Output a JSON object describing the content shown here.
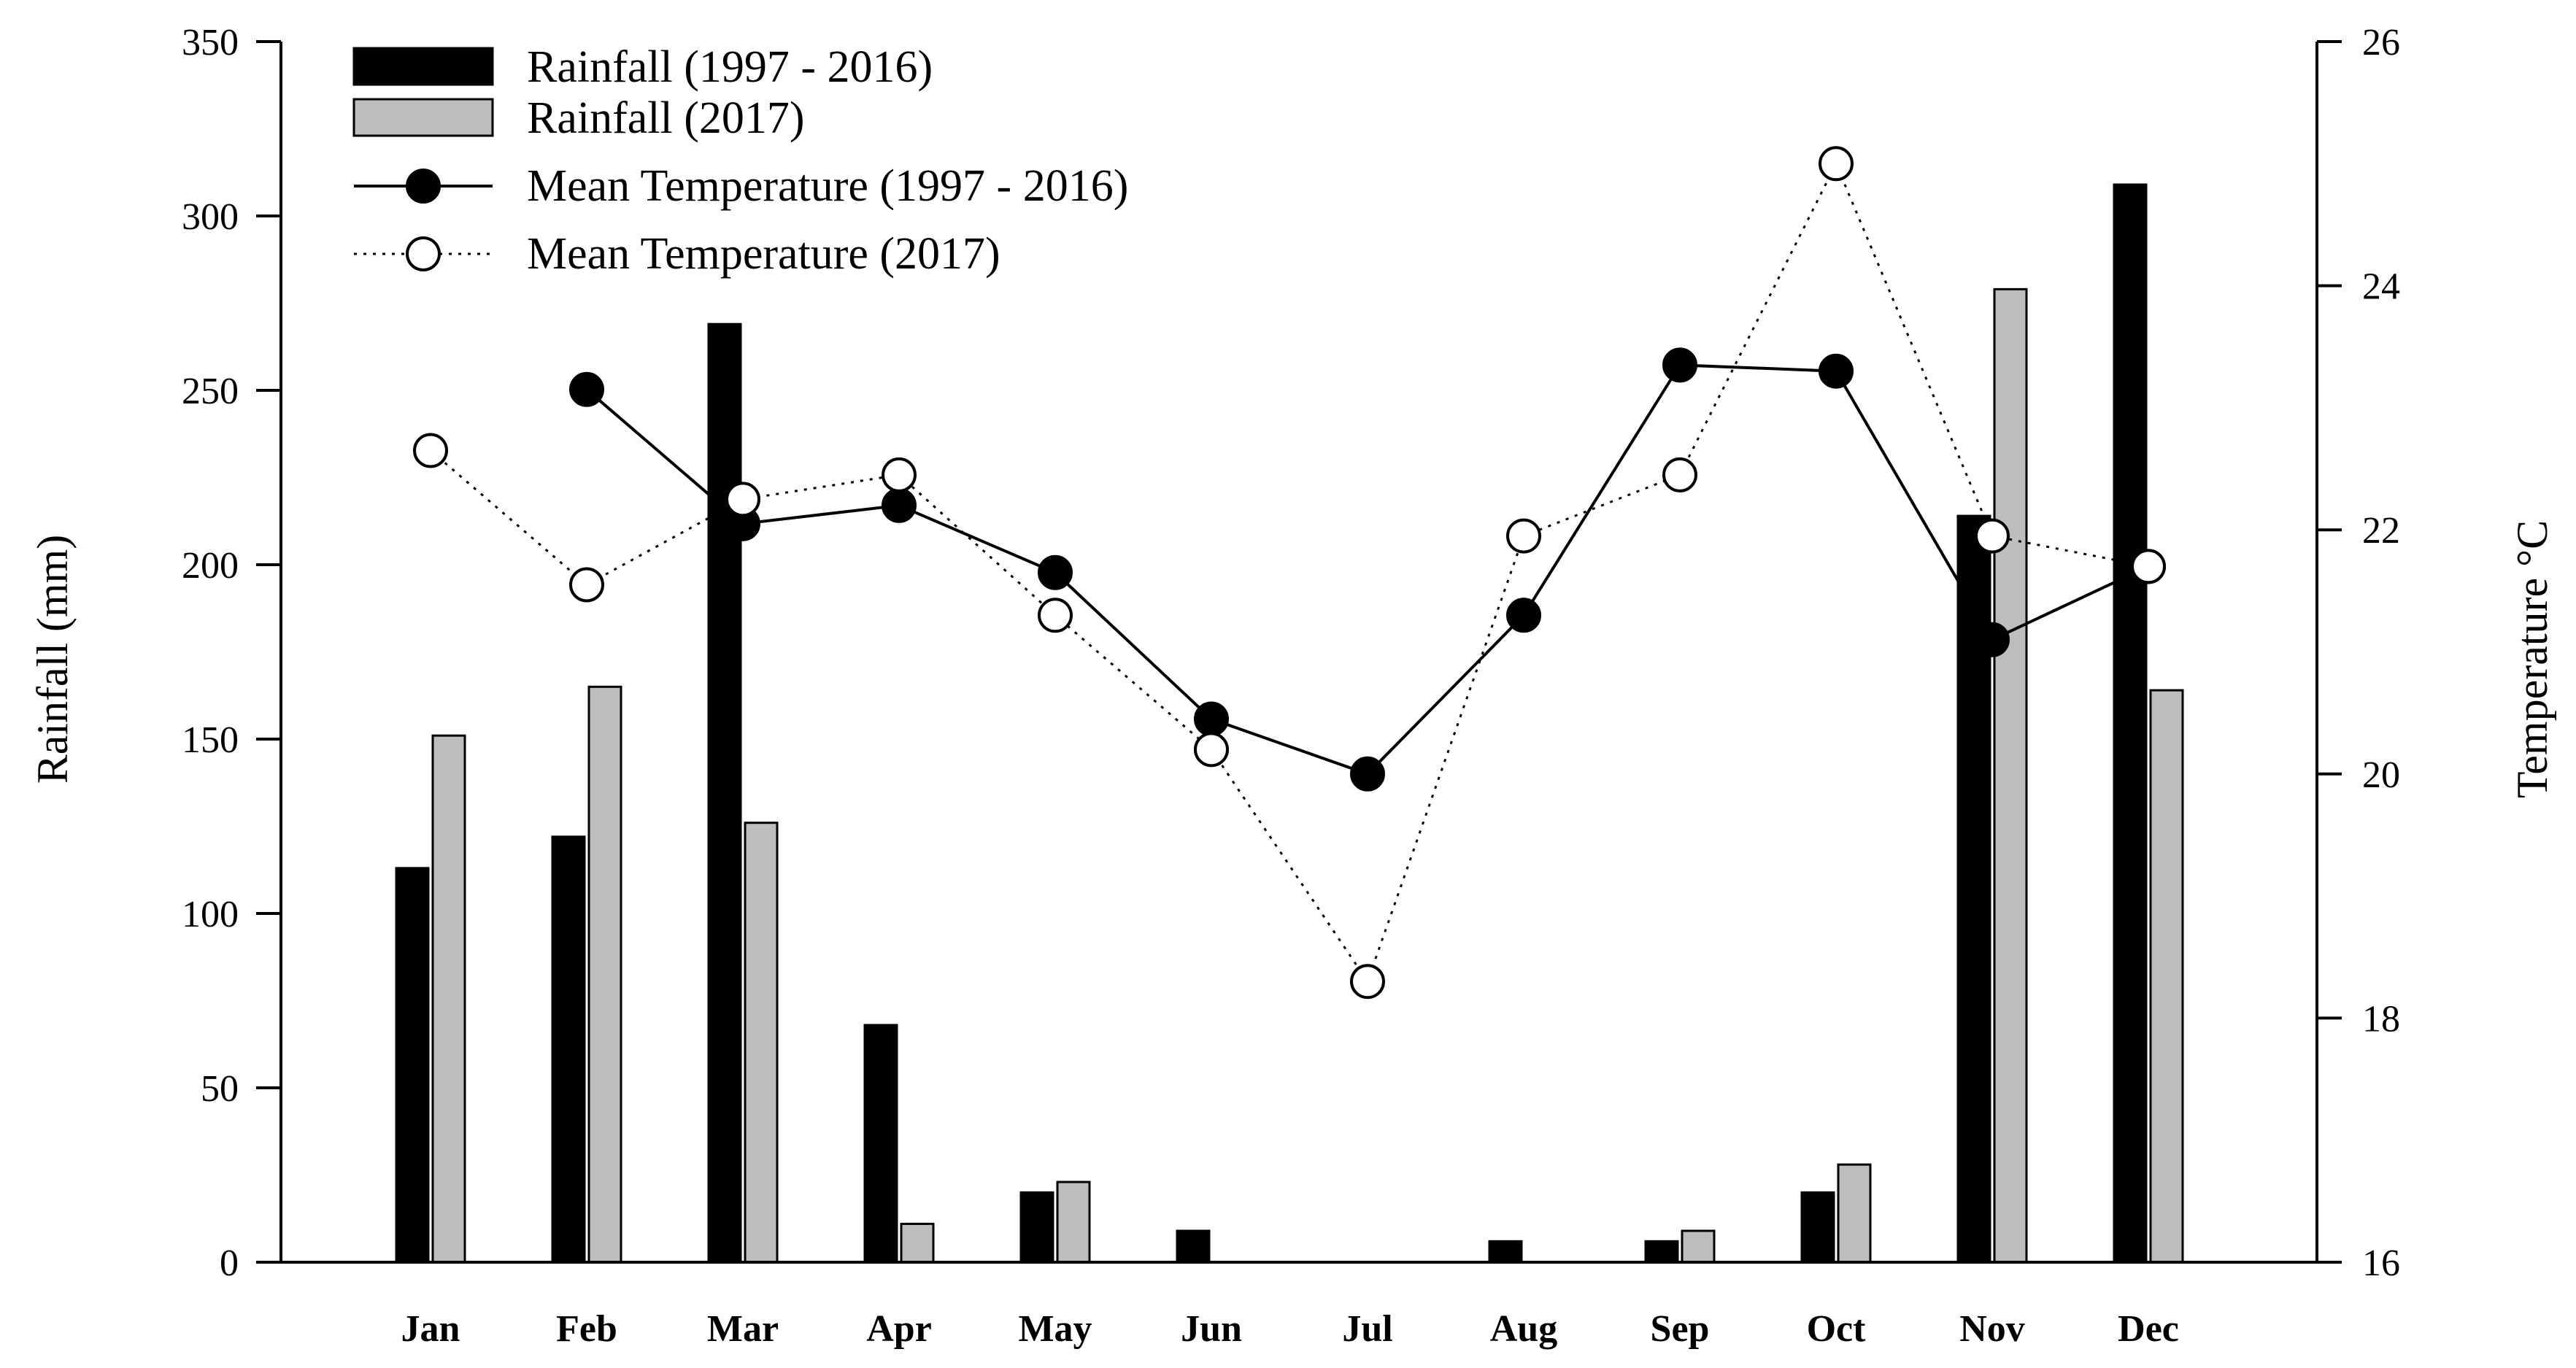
{
  "chart_data": {
    "type": "bar+line",
    "categories": [
      "Jan",
      "Feb",
      "Mar",
      "Apr",
      "May",
      "Jun",
      "Jul",
      "Aug",
      "Sep",
      "Oct",
      "Nov",
      "Dec"
    ],
    "bar_series": [
      {
        "name": "Rainfall (1997 - 2016)",
        "color": "#000000",
        "values": [
          113,
          122,
          269,
          68,
          20,
          9,
          0,
          6,
          6,
          20,
          214,
          309
        ]
      },
      {
        "name": "Rainfall (2017)",
        "color": "#bdbdbd",
        "values": [
          151,
          165,
          126,
          11,
          23,
          0,
          0,
          0,
          9,
          28,
          279,
          164
        ]
      }
    ],
    "line_series": [
      {
        "name": "Mean Temperature (1997 - 2016)",
        "style": "solid",
        "marker": "filled-circle",
        "values": [
          null,
          23.15,
          22.05,
          22.2,
          21.65,
          20.45,
          20.0,
          21.3,
          23.35,
          23.3,
          21.1,
          21.7
        ]
      },
      {
        "name": "Mean Temperature (2017)",
        "style": "dotted",
        "marker": "open-circle",
        "values": [
          22.65,
          21.55,
          22.25,
          22.45,
          21.3,
          20.2,
          18.3,
          21.95,
          22.45,
          25.0,
          21.95,
          21.7
        ]
      }
    ],
    "title": "",
    "xlabel": "",
    "ylabel": "Rainfall (mm)",
    "ylim": [
      0,
      350
    ],
    "yticks": [
      "0",
      "50",
      "100",
      "150",
      "200",
      "250",
      "300",
      "350"
    ],
    "y2label": "Temperature °C",
    "y2lim": [
      16,
      26
    ],
    "y2ticks": [
      "16",
      "18",
      "20",
      "22",
      "24",
      "26"
    ],
    "legend_position": "top-left",
    "grid": false
  }
}
